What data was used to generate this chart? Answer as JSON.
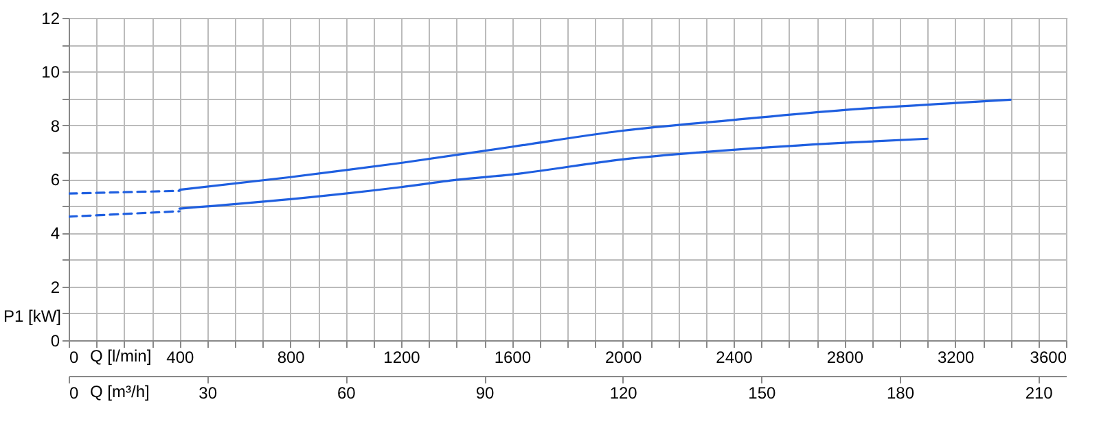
{
  "chart_data": {
    "type": "line",
    "xlabel": "Q [l/min]",
    "ylabel": "P1 [kW]",
    "x2label": "Q [m³/h]",
    "xlim": [
      0,
      3600
    ],
    "xticks": [
      0,
      {
        "value": 100,
        "label": null
      },
      {
        "value": 200,
        "label": null
      },
      {
        "value": 300,
        "label": null
      },
      400,
      {
        "value": 500,
        "label": null
      },
      {
        "value": 600,
        "label": null
      },
      {
        "value": 700,
        "label": null
      },
      800,
      {
        "value": 900,
        "label": null
      },
      {
        "value": 1000,
        "label": null
      },
      {
        "value": 1100,
        "label": null
      },
      1200,
      {
        "value": 1300,
        "label": null
      },
      {
        "value": 1400,
        "label": null
      },
      {
        "value": 1500,
        "label": null
      },
      1600,
      {
        "value": 1700,
        "label": null
      },
      {
        "value": 1800,
        "label": null
      },
      {
        "value": 1900,
        "label": null
      },
      2000,
      {
        "value": 2100,
        "label": null
      },
      {
        "value": 2200,
        "label": null
      },
      {
        "value": 2300,
        "label": null
      },
      2400,
      {
        "value": 2500,
        "label": null
      },
      {
        "value": 2600,
        "label": null
      },
      {
        "value": 2700,
        "label": null
      },
      2800,
      {
        "value": 2900,
        "label": null
      },
      {
        "value": 3000,
        "label": null
      },
      {
        "value": 3100,
        "label": null
      },
      3200,
      {
        "value": 3300,
        "label": null
      },
      {
        "value": 3400,
        "label": null
      },
      {
        "value": 3500,
        "label": null
      },
      3600
    ],
    "x2lim": [
      0,
      216
    ],
    "x2ticks": [
      0,
      30,
      60,
      90,
      120,
      150,
      180,
      210
    ],
    "ylim": [
      0,
      12
    ],
    "yticks": [
      0,
      {
        "value": 1,
        "label": null
      },
      2,
      {
        "value": 3,
        "label": null
      },
      4,
      {
        "value": 5,
        "label": null
      },
      6,
      {
        "value": 7,
        "label": null
      },
      8,
      {
        "value": 9,
        "label": null
      },
      10,
      {
        "value": 11,
        "label": null
      },
      12
    ],
    "grid": true,
    "series": [
      {
        "color": "#1f5fe0",
        "line_style": "dashed",
        "x": [
          0,
          400
        ],
        "values": [
          5.46,
          5.56
        ]
      },
      {
        "color": "#1f5fe0",
        "line_style": "solid",
        "x": [
          400,
          800,
          1200,
          1600,
          2000,
          2400,
          2800,
          3200,
          3400
        ],
        "values": [
          5.6,
          6.07,
          6.6,
          7.2,
          7.8,
          8.2,
          8.57,
          8.83,
          8.95
        ]
      },
      {
        "color": "#1f5fe0",
        "line_style": "dashed",
        "x": [
          0,
          400
        ],
        "values": [
          4.6,
          4.8
        ]
      },
      {
        "color": "#1f5fe0",
        "line_style": "solid",
        "x": [
          400,
          800,
          1200,
          1400,
          1600,
          2000,
          2400,
          2800,
          3100
        ],
        "values": [
          4.9,
          5.25,
          5.7,
          5.97,
          6.17,
          6.73,
          7.09,
          7.35,
          7.5
        ]
      }
    ]
  }
}
